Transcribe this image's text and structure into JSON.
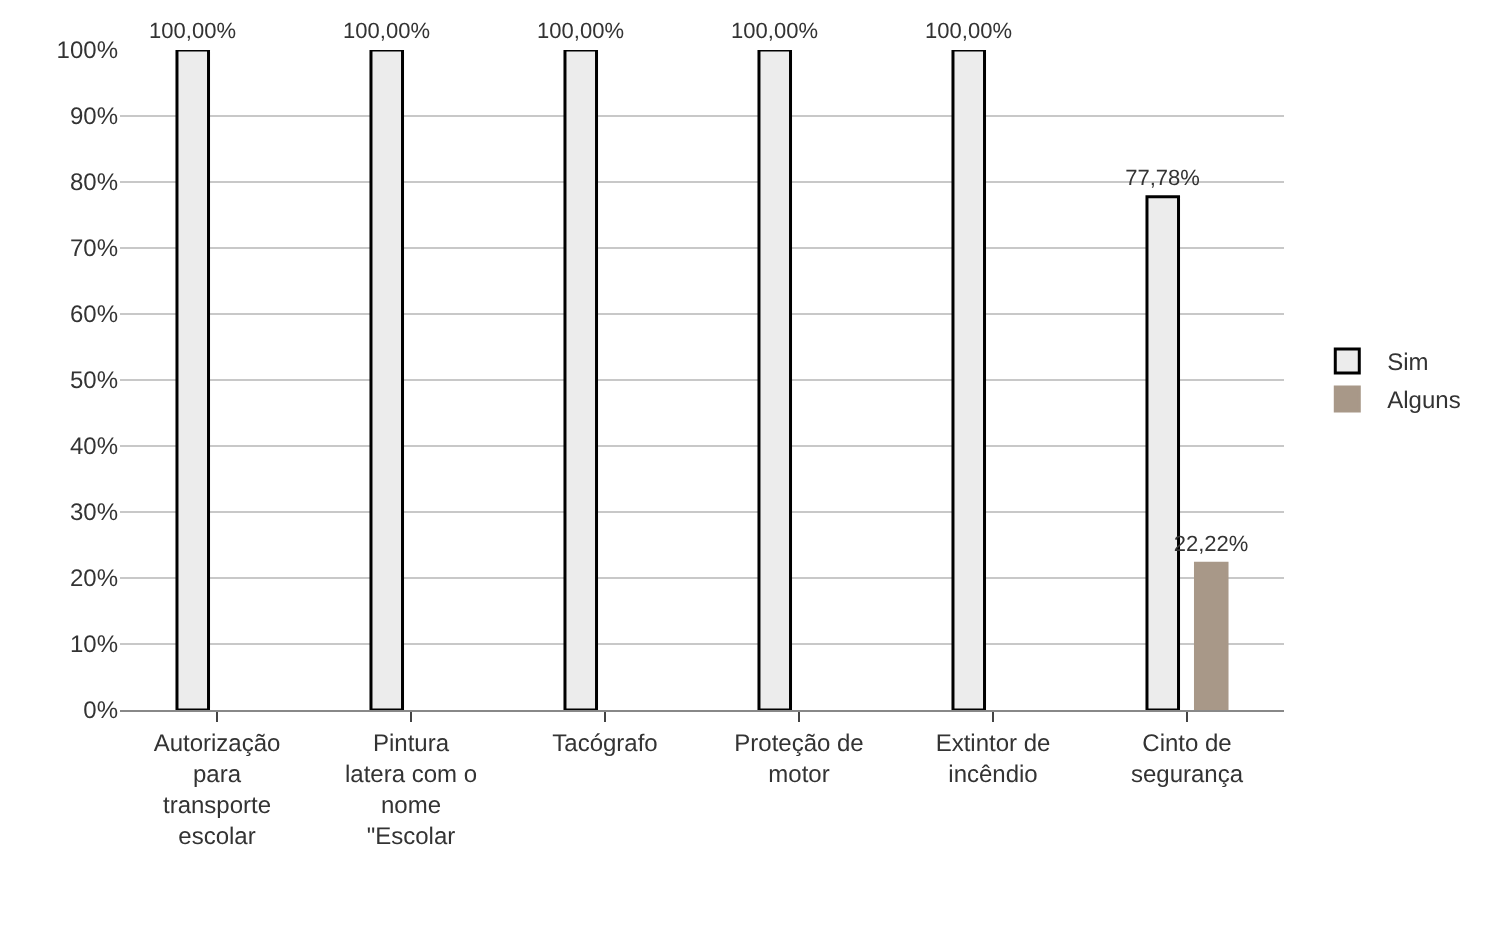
{
  "chart_data": {
    "type": "bar",
    "categories": [
      "Autorização para transporte escolar",
      "Pintura latera com o nome \"Escolar",
      "Tacógrafo",
      "Proteção de motor",
      "Extintor de incêndio",
      "Cinto de segurança"
    ],
    "series": [
      {
        "name": "Sim",
        "color": "#ececec",
        "values": [
          100,
          100,
          100,
          100,
          100,
          77.78
        ],
        "value_labels": [
          "100,00%",
          "100,00%",
          "100,00%",
          "100,00%",
          "100,00%",
          "77,78%"
        ]
      },
      {
        "name": "Alguns",
        "color": "#a89888",
        "values": [
          null,
          null,
          null,
          null,
          null,
          22.22
        ],
        "value_labels": [
          null,
          null,
          null,
          null,
          null,
          "22,22%"
        ]
      }
    ],
    "ylim": [
      0,
      100
    ],
    "yticks": [
      {
        "value": 0,
        "label": "0%"
      },
      {
        "value": 10,
        "label": "10%"
      },
      {
        "value": 20,
        "label": "20%"
      },
      {
        "value": 30,
        "label": "30%"
      },
      {
        "value": 40,
        "label": "40%"
      },
      {
        "value": 50,
        "label": "50%"
      },
      {
        "value": 60,
        "label": "60%"
      },
      {
        "value": 70,
        "label": "70%"
      },
      {
        "value": 80,
        "label": "80%"
      },
      {
        "value": 90,
        "label": "90%"
      },
      {
        "value": 100,
        "label": "100%"
      }
    ],
    "grid": "y",
    "legend": "right"
  }
}
